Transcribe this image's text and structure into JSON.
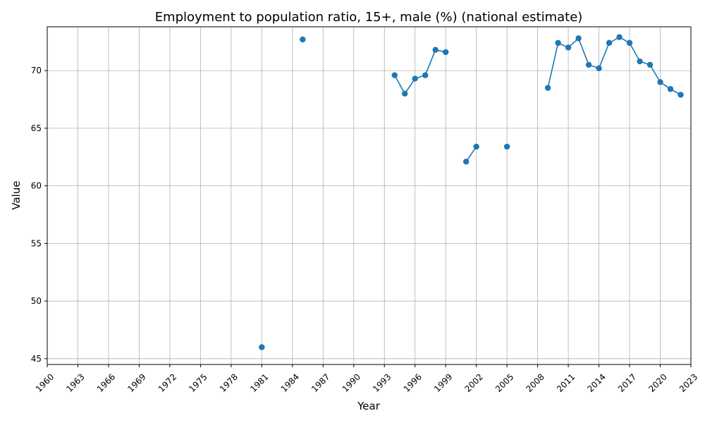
{
  "chart_data": {
    "type": "line",
    "title": "Employment to population ratio, 15+, male (%) (national estimate)",
    "xlabel": "Year",
    "ylabel": "Value",
    "xlim": [
      1960,
      2023
    ],
    "ylim": [
      44.5,
      73.8
    ],
    "x_ticks": [
      1960,
      1963,
      1966,
      1969,
      1972,
      1975,
      1978,
      1981,
      1984,
      1987,
      1990,
      1993,
      1996,
      1999,
      2002,
      2005,
      2008,
      2011,
      2014,
      2017,
      2020,
      2023
    ],
    "y_ticks": [
      45,
      50,
      55,
      60,
      65,
      70
    ],
    "grid": true,
    "color": "#1f77b4",
    "series": [
      {
        "points": [
          [
            1981,
            46.0
          ],
          [
            1985,
            72.7
          ],
          [
            1994,
            69.6
          ],
          [
            1995,
            68.0
          ],
          [
            1996,
            69.3
          ],
          [
            1997,
            69.6
          ],
          [
            1998,
            71.8
          ],
          [
            1999,
            71.6
          ],
          [
            2001,
            62.1
          ],
          [
            2002,
            63.4
          ],
          [
            2005,
            63.4
          ],
          [
            2009,
            68.5
          ],
          [
            2010,
            72.4
          ],
          [
            2011,
            72.0
          ],
          [
            2012,
            72.8
          ],
          [
            2013,
            70.5
          ],
          [
            2014,
            70.2
          ],
          [
            2015,
            72.4
          ],
          [
            2016,
            72.9
          ],
          [
            2017,
            72.4
          ],
          [
            2018,
            70.8
          ],
          [
            2019,
            70.5
          ],
          [
            2020,
            69.0
          ],
          [
            2021,
            68.4
          ],
          [
            2022,
            67.9
          ]
        ]
      }
    ]
  }
}
